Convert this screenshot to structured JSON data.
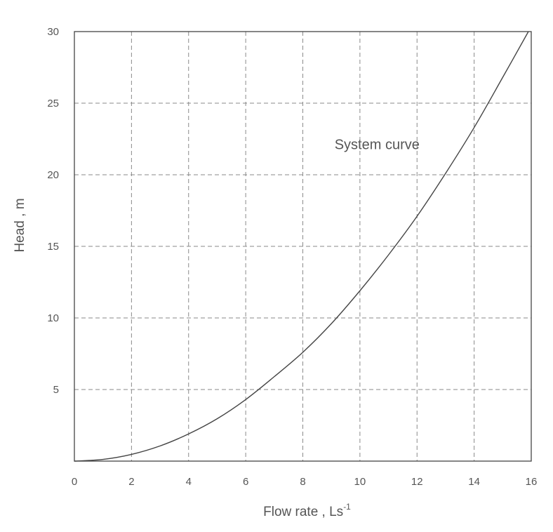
{
  "chart_data": {
    "type": "line",
    "title": "",
    "xlabel": "Flow rate , Ls",
    "xlabel_superscript": "-1",
    "ylabel": "Head , m",
    "xlim": [
      0,
      16
    ],
    "ylim": [
      0,
      30
    ],
    "x_ticks": [
      0,
      2,
      4,
      6,
      8,
      10,
      12,
      14,
      16
    ],
    "y_ticks": [
      5,
      10,
      15,
      20,
      25,
      30
    ],
    "grid": true,
    "annotation": {
      "text": "System curve",
      "x": 10.6,
      "y": 21.8
    },
    "series": [
      {
        "name": "System curve",
        "x": [
          0,
          1,
          2,
          3,
          4,
          5,
          6,
          7,
          8,
          9,
          10,
          11,
          12,
          13,
          14,
          15,
          15.9
        ],
        "y": [
          0,
          0.12,
          0.47,
          1.06,
          1.9,
          2.96,
          4.3,
          5.9,
          7.6,
          9.6,
          11.9,
          14.4,
          17.1,
          20.1,
          23.3,
          26.8,
          30
        ]
      }
    ]
  }
}
